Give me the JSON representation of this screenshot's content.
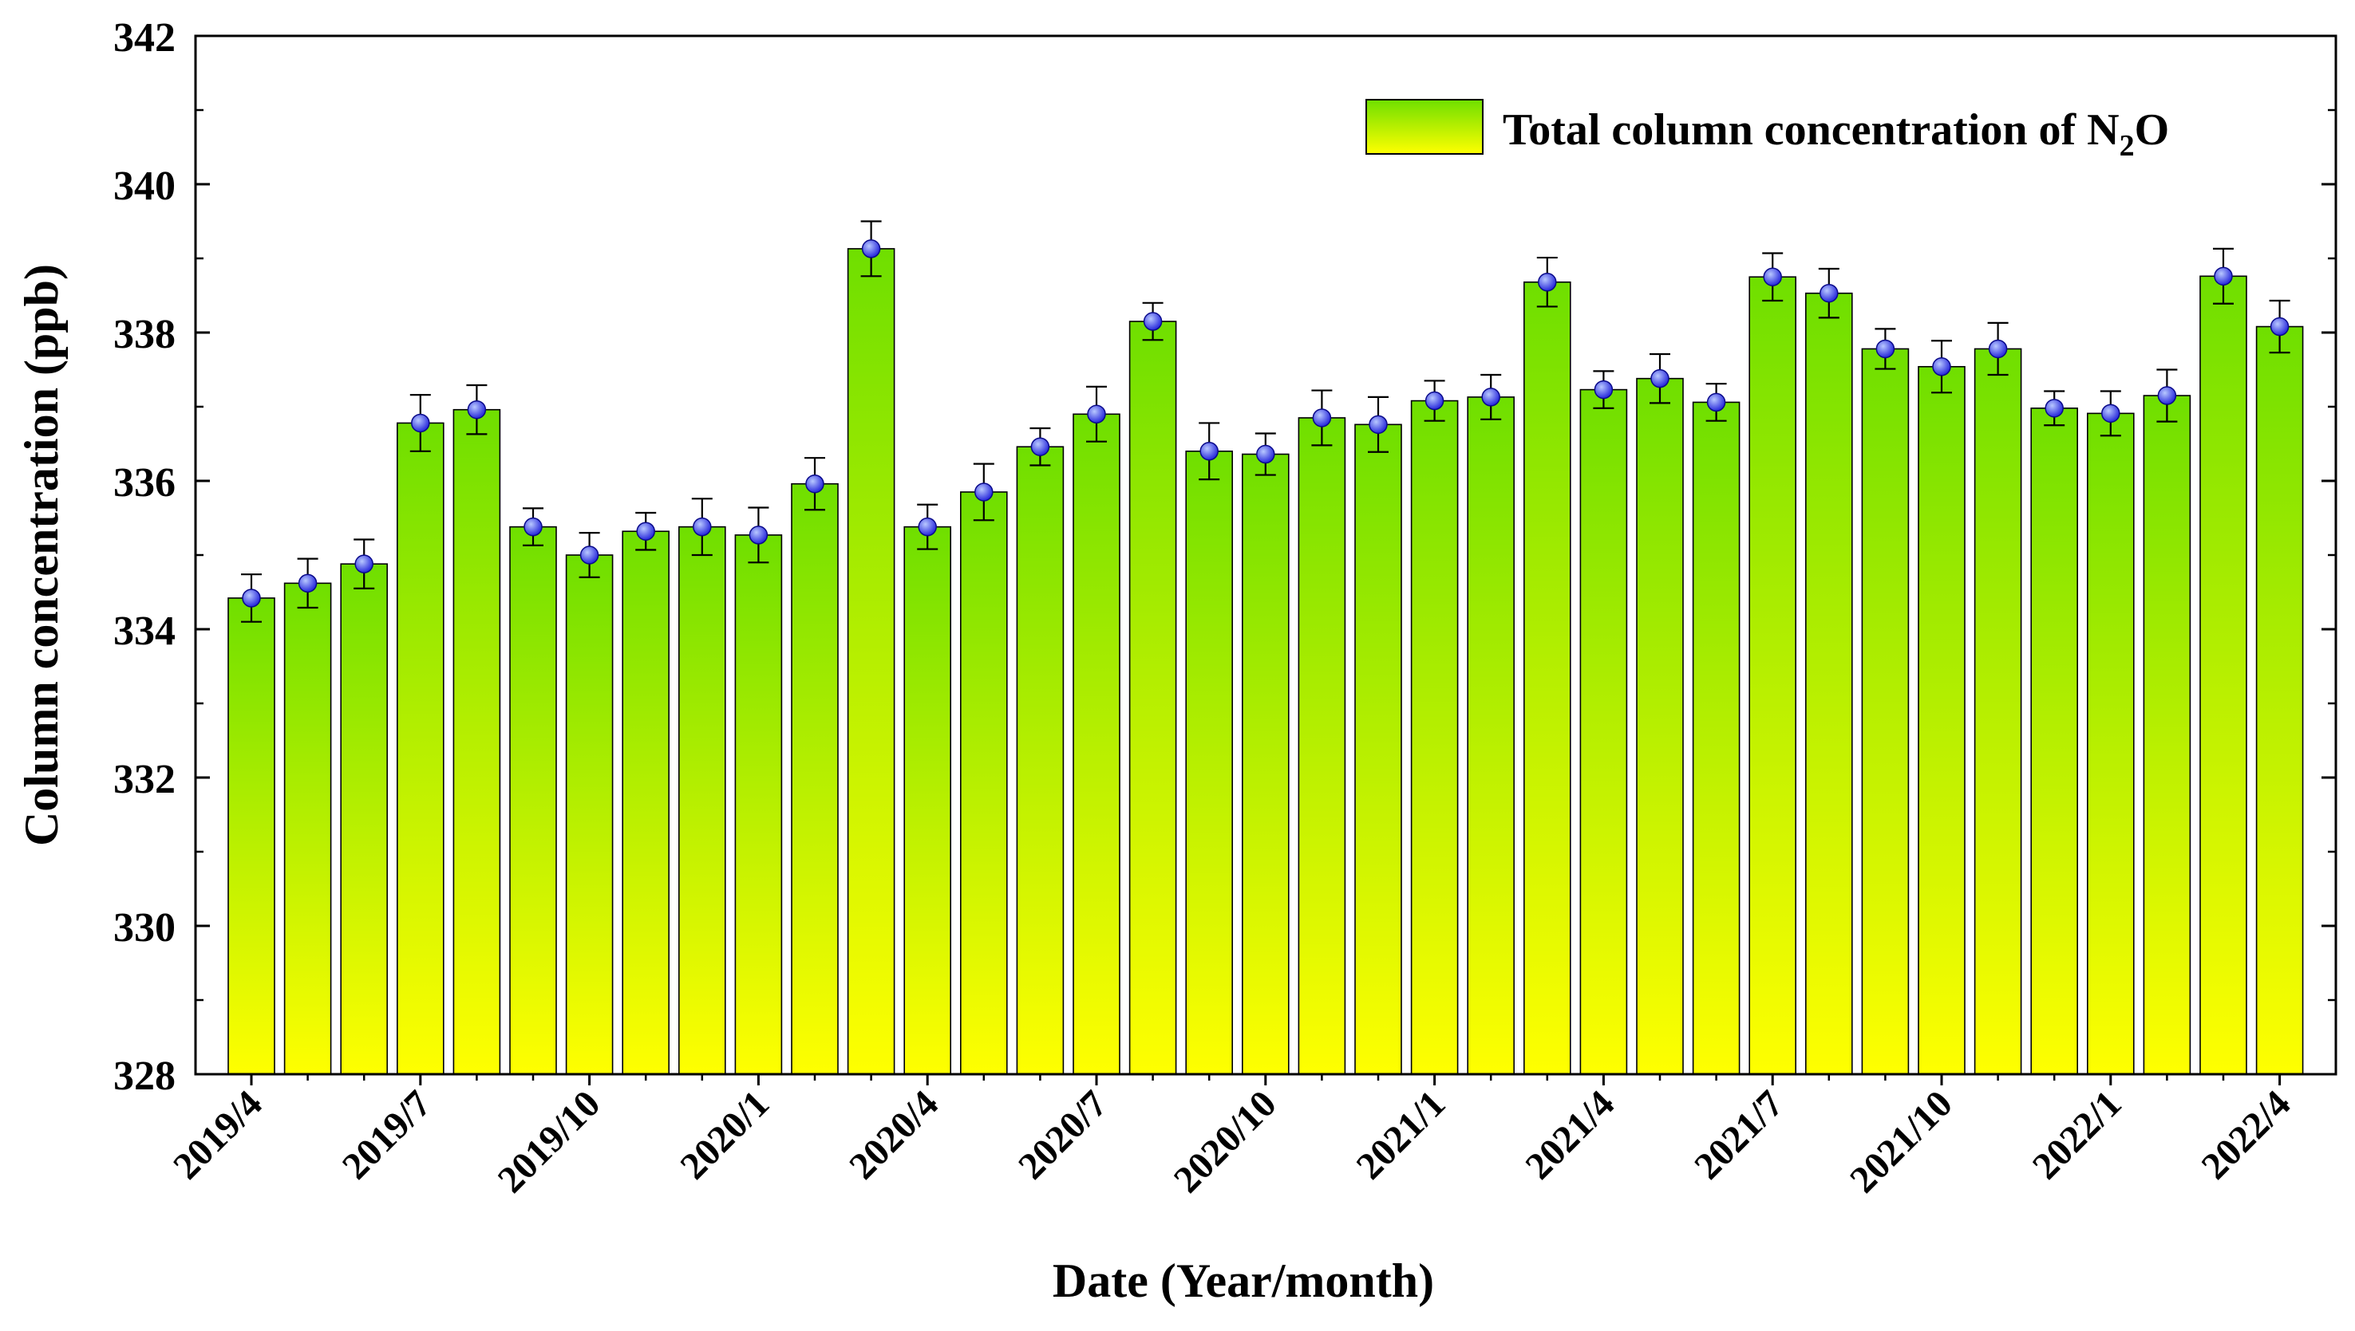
{
  "chart_data": {
    "type": "bar",
    "title": "",
    "xlabel": "Date (Year/month)",
    "ylabel": "Column concentration (ppb)",
    "ylim": [
      328,
      342
    ],
    "yticks": [
      328,
      330,
      332,
      334,
      336,
      338,
      340,
      342
    ],
    "x_tick_labels": [
      {
        "index": 0,
        "label": "2019/4"
      },
      {
        "index": 3,
        "label": "2019/7"
      },
      {
        "index": 6,
        "label": "2019/10"
      },
      {
        "index": 9,
        "label": "2020/1"
      },
      {
        "index": 12,
        "label": "2020/4"
      },
      {
        "index": 15,
        "label": "2020/7"
      },
      {
        "index": 18,
        "label": "2020/10"
      },
      {
        "index": 21,
        "label": "2021/1"
      },
      {
        "index": 24,
        "label": "2021/4"
      },
      {
        "index": 27,
        "label": "2021/7"
      },
      {
        "index": 30,
        "label": "2021/10"
      },
      {
        "index": 33,
        "label": "2022/1"
      },
      {
        "index": 36,
        "label": "2022/4"
      }
    ],
    "legend": {
      "text": "Total column concentration of N",
      "subscript": "2",
      "suffix": "O",
      "position": "top-right"
    },
    "series": [
      {
        "values": [
          334.42,
          334.62,
          334.88,
          336.78,
          336.96,
          335.38,
          335.0,
          335.32,
          335.38,
          335.27,
          335.96,
          339.13,
          335.38,
          335.85,
          336.46,
          336.9,
          338.15,
          336.4,
          336.36,
          336.85,
          336.76,
          337.08,
          337.13,
          338.68,
          337.23,
          337.38,
          337.06,
          338.75,
          338.53,
          337.78,
          337.54,
          337.78,
          336.98,
          336.91,
          337.15,
          338.76,
          338.08
        ],
        "errors": [
          0.32,
          0.33,
          0.33,
          0.38,
          0.33,
          0.25,
          0.3,
          0.25,
          0.38,
          0.37,
          0.35,
          0.37,
          0.3,
          0.38,
          0.25,
          0.37,
          0.25,
          0.38,
          0.28,
          0.37,
          0.37,
          0.27,
          0.3,
          0.33,
          0.25,
          0.33,
          0.25,
          0.32,
          0.33,
          0.27,
          0.35,
          0.35,
          0.23,
          0.3,
          0.35,
          0.37,
          0.35
        ]
      }
    ],
    "colors": {
      "bar_top": "#6fdf00",
      "bar_bottom": "#ffff00",
      "marker": "#1c1cd9",
      "marker_highlight": "#b8c8ff"
    }
  }
}
